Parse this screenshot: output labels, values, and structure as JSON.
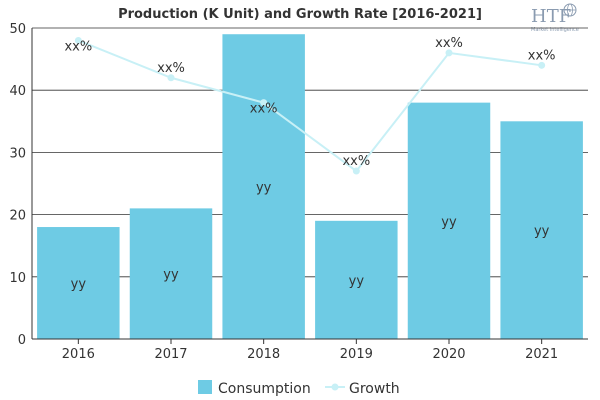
{
  "chart_data": {
    "type": "bar",
    "title": "Production (K Unit) and Growth Rate [2016-2021]",
    "categories": [
      "2016",
      "2017",
      "2018",
      "2019",
      "2020",
      "2021"
    ],
    "ylim": [
      0,
      50
    ],
    "yticks": [
      0,
      10,
      20,
      30,
      40,
      50
    ],
    "grid": true,
    "legend_position": "bottom",
    "series": [
      {
        "name": "Consumption",
        "type": "bar",
        "color": "#6ecbe4",
        "values": [
          18,
          21,
          49,
          19,
          38,
          35
        ],
        "labels": [
          "yy",
          "yy",
          "yy",
          "yy",
          "yy",
          "yy"
        ]
      },
      {
        "name": "Growth",
        "type": "line",
        "color": "#c8f0f6",
        "values": [
          48,
          42,
          38,
          27,
          46,
          44
        ],
        "labels": [
          "xx%",
          "xx%",
          "xx%",
          "xx%",
          "xx%",
          "xx%"
        ]
      }
    ]
  },
  "logo": {
    "text": "HTF",
    "subtitle": "Market Intelligence",
    "icon": "globe-icon"
  }
}
